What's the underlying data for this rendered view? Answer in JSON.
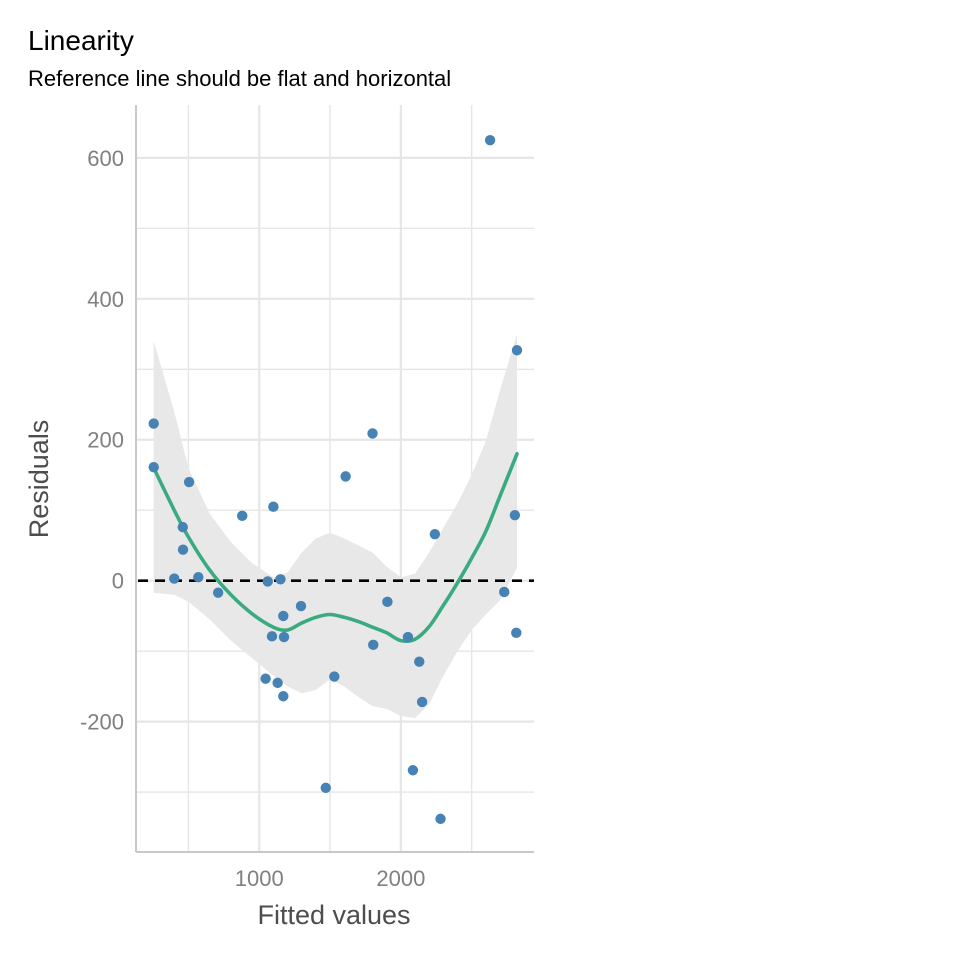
{
  "chart_data": {
    "type": "scatter",
    "title": "Linearity",
    "subtitle": "Reference line should be flat and horizontal",
    "xlabel": "Fitted values",
    "ylabel": "Residuals",
    "xlim": [
      130,
      2940
    ],
    "ylim": [
      -385,
      675
    ],
    "x_ticks": [
      1000,
      2000
    ],
    "x_tick_labels": [
      "1000",
      "2000"
    ],
    "x_minor_ticks": [
      500,
      1500,
      2500
    ],
    "y_ticks": [
      -200,
      0,
      200,
      400,
      600
    ],
    "y_tick_labels": [
      "-200",
      "0",
      "200",
      "400",
      "600"
    ],
    "y_minor_ticks": [
      -300,
      -100,
      100,
      300,
      500
    ],
    "grid": true,
    "colors": {
      "points": "#4682b4",
      "smooth": "#3aaa80",
      "band": "#e8e8e8",
      "reference": "#000000",
      "grid": "#e6e6e6",
      "axis": "#c8c8c8"
    },
    "reference_line": {
      "y": 0,
      "style": "dashed"
    },
    "points": [
      {
        "x": 255,
        "y": 223
      },
      {
        "x": 255,
        "y": 161
      },
      {
        "x": 400,
        "y": 3
      },
      {
        "x": 460,
        "y": 76
      },
      {
        "x": 462,
        "y": 44
      },
      {
        "x": 505,
        "y": 140
      },
      {
        "x": 570,
        "y": 5
      },
      {
        "x": 710,
        "y": -17
      },
      {
        "x": 880,
        "y": 92
      },
      {
        "x": 1045,
        "y": -139
      },
      {
        "x": 1060,
        "y": -1
      },
      {
        "x": 1090,
        "y": -79
      },
      {
        "x": 1100,
        "y": 105
      },
      {
        "x": 1130,
        "y": -145
      },
      {
        "x": 1150,
        "y": 2
      },
      {
        "x": 1170,
        "y": -50
      },
      {
        "x": 1170,
        "y": -164
      },
      {
        "x": 1175,
        "y": -80
      },
      {
        "x": 1295,
        "y": -36
      },
      {
        "x": 1470,
        "y": -294
      },
      {
        "x": 1530,
        "y": -136
      },
      {
        "x": 1610,
        "y": 148
      },
      {
        "x": 1800,
        "y": 209
      },
      {
        "x": 1805,
        "y": -91
      },
      {
        "x": 1905,
        "y": -30
      },
      {
        "x": 2050,
        "y": -80
      },
      {
        "x": 2085,
        "y": -269
      },
      {
        "x": 2130,
        "y": -115
      },
      {
        "x": 2150,
        "y": -172
      },
      {
        "x": 2240,
        "y": 66
      },
      {
        "x": 2280,
        "y": -338
      },
      {
        "x": 2630,
        "y": 625
      },
      {
        "x": 2730,
        "y": -16
      },
      {
        "x": 2805,
        "y": 93
      },
      {
        "x": 2815,
        "y": -74
      },
      {
        "x": 2820,
        "y": 327
      }
    ],
    "smooth": [
      {
        "x": 255,
        "y": 160,
        "lo": -17,
        "hi": 340
      },
      {
        "x": 400,
        "y": 100,
        "lo": -20,
        "hi": 240
      },
      {
        "x": 500,
        "y": 62,
        "lo": -30,
        "hi": 160
      },
      {
        "x": 650,
        "y": 15,
        "lo": -55,
        "hi": 95
      },
      {
        "x": 800,
        "y": -20,
        "lo": -85,
        "hi": 55
      },
      {
        "x": 950,
        "y": -47,
        "lo": -110,
        "hi": 25
      },
      {
        "x": 1100,
        "y": -66,
        "lo": -135,
        "hi": 5
      },
      {
        "x": 1200,
        "y": -70,
        "lo": -150,
        "hi": 12
      },
      {
        "x": 1300,
        "y": -60,
        "lo": -160,
        "hi": 40
      },
      {
        "x": 1400,
        "y": -52,
        "lo": -155,
        "hi": 60
      },
      {
        "x": 1500,
        "y": -48,
        "lo": -140,
        "hi": 68
      },
      {
        "x": 1600,
        "y": -52,
        "lo": -150,
        "hi": 60
      },
      {
        "x": 1700,
        "y": -58,
        "lo": -165,
        "hi": 50
      },
      {
        "x": 1800,
        "y": -66,
        "lo": -178,
        "hi": 40
      },
      {
        "x": 1900,
        "y": -74,
        "lo": -182,
        "hi": 20
      },
      {
        "x": 2000,
        "y": -85,
        "lo": -192,
        "hi": 5
      },
      {
        "x": 2100,
        "y": -83,
        "lo": -195,
        "hi": 10
      },
      {
        "x": 2200,
        "y": -65,
        "lo": -175,
        "hi": 40
      },
      {
        "x": 2300,
        "y": -35,
        "lo": -135,
        "hi": 75
      },
      {
        "x": 2400,
        "y": -3,
        "lo": -100,
        "hi": 110
      },
      {
        "x": 2500,
        "y": 32,
        "lo": -70,
        "hi": 150
      },
      {
        "x": 2600,
        "y": 70,
        "lo": -48,
        "hi": 198
      },
      {
        "x": 2700,
        "y": 120,
        "lo": -28,
        "hi": 270
      },
      {
        "x": 2820,
        "y": 180,
        "lo": 18,
        "hi": 350
      }
    ]
  }
}
